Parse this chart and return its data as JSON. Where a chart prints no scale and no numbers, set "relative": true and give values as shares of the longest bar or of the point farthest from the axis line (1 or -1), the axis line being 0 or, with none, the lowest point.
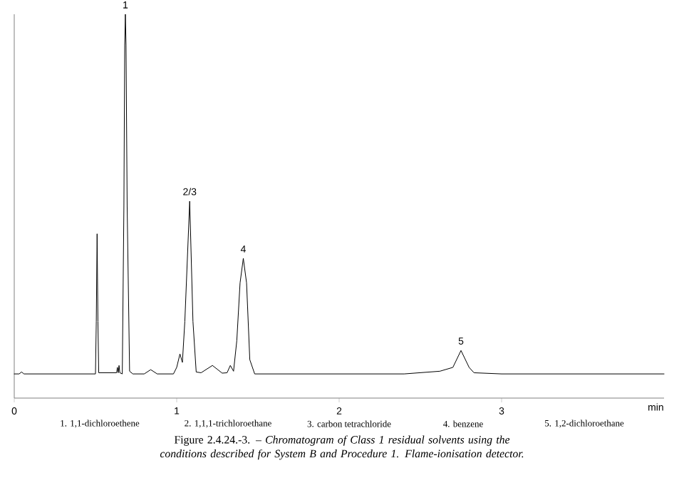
{
  "chart_data": {
    "type": "line",
    "relative": true,
    "x": [
      0,
      0.03,
      0.045,
      0.06,
      0.5,
      0.505,
      0.51,
      0.515,
      0.52,
      0.63,
      0.635,
      0.64,
      0.645,
      0.65,
      0.665,
      0.675,
      0.68,
      0.684,
      0.688,
      0.695,
      0.71,
      0.73,
      0.8,
      0.84,
      0.88,
      0.98,
      1.0,
      1.02,
      1.035,
      1.05,
      1.08,
      1.1,
      1.12,
      1.15,
      1.22,
      1.28,
      1.31,
      1.33,
      1.35,
      1.37,
      1.39,
      1.41,
      1.43,
      1.45,
      1.48,
      2.4,
      2.62,
      2.7,
      2.75,
      2.8,
      2.83,
      3.0,
      4.0
    ],
    "series": [
      {
        "color": "#000000",
        "values": [
          0.063,
          0.063,
          0.068,
          0.063,
          0.063,
          0.2,
          0.428,
          0.2,
          0.066,
          0.066,
          0.08,
          0.066,
          0.085,
          0.066,
          0.063,
          0.5,
          0.92,
          1,
          0.92,
          0.5,
          0.07,
          0.063,
          0.063,
          0.074,
          0.063,
          0.063,
          0.08,
          0.115,
          0.093,
          0.2,
          0.513,
          0.2,
          0.068,
          0.066,
          0.085,
          0.065,
          0.066,
          0.085,
          0.07,
          0.15,
          0.3,
          0.364,
          0.3,
          0.1,
          0.063,
          0.063,
          0.07,
          0.08,
          0.124,
          0.08,
          0.066,
          0.063,
          0.063
        ]
      }
    ],
    "xlim": [
      0,
      4
    ],
    "xticks": [
      0,
      1,
      2,
      3
    ],
    "xlabel": "min",
    "grid": false,
    "annotations": [
      {
        "text": "1",
        "x": 0.684,
        "y": 1
      },
      {
        "text": "2/3",
        "x": 1.08,
        "y": 0.513
      },
      {
        "text": "4",
        "x": 1.41,
        "y": 0.364
      },
      {
        "text": "5",
        "x": 2.75,
        "y": 0.124
      },
      "1. 1,1-dichloroethene",
      "2. 1,1,1-trichloroethane",
      "3. carbon tetrachloride",
      "4. benzene",
      "5. 1,2-dichloroethane",
      "Figure 2.4.24.-3. – *Chromatogram of Class 1 residual solvents using the conditions described for System B and Procedure 1. Flame-ionisation detector.*"
    ]
  }
}
